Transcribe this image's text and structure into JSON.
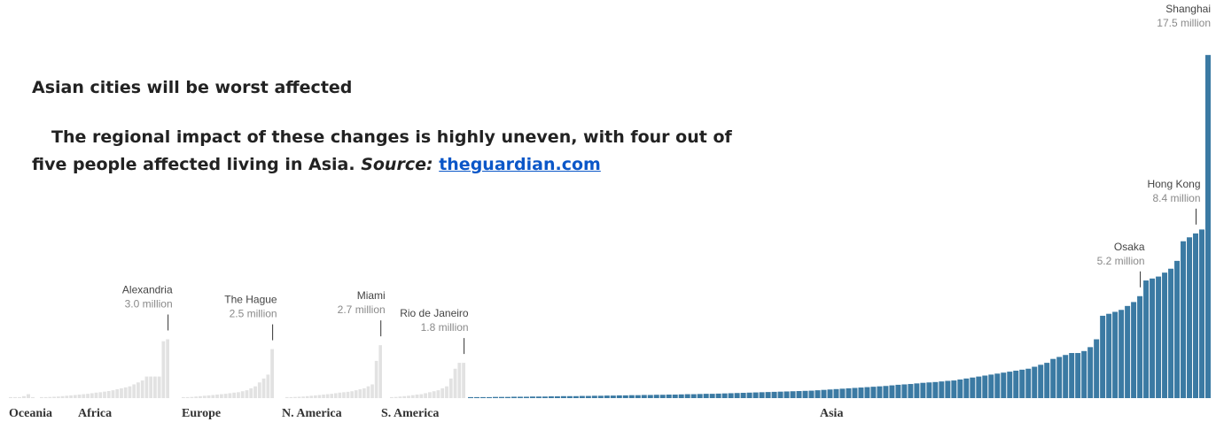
{
  "heading": "Asian cities will be worst affected",
  "paragraph": {
    "text": "The regional impact of these changes is highly uneven, with four out of five people affected living in Asia.",
    "source_label": "Source:",
    "link": "theguardian.com"
  },
  "chart_data": {
    "type": "bar",
    "ylim": [
      0,
      18.5
    ],
    "groups": [
      {
        "name": "Oceania",
        "color": "#e2e2e2",
        "values": [
          0.05,
          0.05,
          0.05,
          0.1,
          0.2,
          0.05
        ],
        "callouts": []
      },
      {
        "name": "Africa",
        "color": "#e2e2e2",
        "values": [
          0.05,
          0.05,
          0.06,
          0.07,
          0.08,
          0.1,
          0.12,
          0.14,
          0.16,
          0.18,
          0.2,
          0.22,
          0.25,
          0.28,
          0.3,
          0.33,
          0.36,
          0.4,
          0.45,
          0.5,
          0.55,
          0.6,
          0.7,
          0.8,
          0.9,
          1.1,
          1.1,
          1.1,
          1.1,
          2.9,
          3.0
        ],
        "callouts": [
          {
            "name": "Alexandria",
            "value": 3.0,
            "value_label": "3.0 million"
          }
        ]
      },
      {
        "name": "Europe",
        "color": "#e2e2e2",
        "values": [
          0.05,
          0.05,
          0.06,
          0.08,
          0.1,
          0.12,
          0.14,
          0.16,
          0.18,
          0.2,
          0.22,
          0.25,
          0.28,
          0.3,
          0.35,
          0.4,
          0.5,
          0.6,
          0.8,
          1.0,
          1.2,
          2.5
        ],
        "callouts": [
          {
            "name": "The Hague",
            "value": 2.5,
            "value_label": "2.5 million"
          }
        ]
      },
      {
        "name": "N. America",
        "color": "#e2e2e2",
        "values": [
          0.05,
          0.05,
          0.06,
          0.07,
          0.08,
          0.1,
          0.12,
          0.14,
          0.16,
          0.18,
          0.2,
          0.22,
          0.25,
          0.28,
          0.3,
          0.32,
          0.35,
          0.4,
          0.45,
          0.5,
          0.6,
          0.7,
          1.9,
          2.7
        ],
        "callouts": [
          {
            "name": "Miami",
            "value": 2.7,
            "value_label": "2.7 million"
          }
        ]
      },
      {
        "name": "S. America",
        "color": "#e2e2e2",
        "values": [
          0.05,
          0.06,
          0.08,
          0.1,
          0.12,
          0.15,
          0.18,
          0.2,
          0.25,
          0.3,
          0.35,
          0.4,
          0.5,
          0.6,
          1.0,
          1.5,
          1.8,
          1.8
        ],
        "callouts": [
          {
            "name": "Rio de Janeiro",
            "value": 1.8,
            "value_label": "1.8 million"
          }
        ]
      },
      {
        "name": "Asia",
        "color": "#3b7aa3",
        "values": [
          0.05,
          0.05,
          0.05,
          0.05,
          0.06,
          0.06,
          0.06,
          0.07,
          0.07,
          0.07,
          0.08,
          0.08,
          0.08,
          0.09,
          0.09,
          0.1,
          0.1,
          0.1,
          0.11,
          0.11,
          0.12,
          0.12,
          0.13,
          0.13,
          0.14,
          0.14,
          0.15,
          0.15,
          0.16,
          0.16,
          0.17,
          0.17,
          0.18,
          0.18,
          0.19,
          0.2,
          0.2,
          0.21,
          0.22,
          0.22,
          0.23,
          0.24,
          0.25,
          0.26,
          0.27,
          0.28,
          0.29,
          0.3,
          0.31,
          0.32,
          0.33,
          0.34,
          0.35,
          0.36,
          0.37,
          0.38,
          0.4,
          0.42,
          0.44,
          0.46,
          0.48,
          0.5,
          0.52,
          0.54,
          0.56,
          0.58,
          0.6,
          0.62,
          0.65,
          0.68,
          0.7,
          0.72,
          0.75,
          0.78,
          0.8,
          0.82,
          0.85,
          0.88,
          0.9,
          0.95,
          1.0,
          1.05,
          1.1,
          1.15,
          1.2,
          1.25,
          1.3,
          1.35,
          1.4,
          1.45,
          1.5,
          1.6,
          1.7,
          1.8,
          2.0,
          2.1,
          2.2,
          2.3,
          2.3,
          2.4,
          2.6,
          3.0,
          4.2,
          4.3,
          4.4,
          4.5,
          4.7,
          4.9,
          5.2,
          6.0,
          6.1,
          6.2,
          6.4,
          6.6,
          7.0,
          8.0,
          8.2,
          8.4,
          8.6,
          17.5
        ],
        "callouts": [
          {
            "name": "Osaka",
            "value": 5.2,
            "value_label": "5.2 million"
          },
          {
            "name": "Hong Kong",
            "value": 8.4,
            "value_label": "8.4 million"
          },
          {
            "name": "Shanghai",
            "value": 17.5,
            "value_label": "17.5 million"
          }
        ]
      }
    ]
  }
}
